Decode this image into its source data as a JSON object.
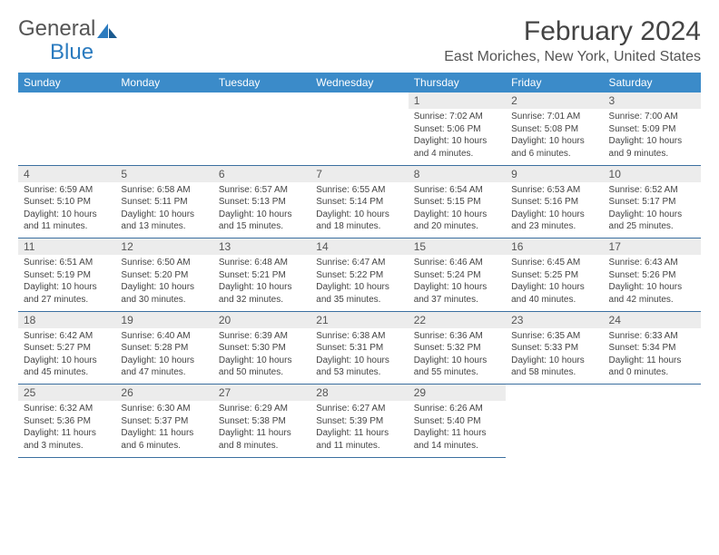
{
  "logo": {
    "text1": "General",
    "text2": "Blue"
  },
  "title": "February 2024",
  "location": "East Moriches, New York, United States",
  "colors": {
    "header_bg": "#3b8bc9",
    "header_fg": "#ffffff",
    "daynum_bg": "#ececec",
    "row_border": "#3b6fa0",
    "logo_gray": "#555555",
    "logo_blue": "#2b7bbf",
    "text": "#444444"
  },
  "weekdays": [
    "Sunday",
    "Monday",
    "Tuesday",
    "Wednesday",
    "Thursday",
    "Friday",
    "Saturday"
  ],
  "layout": {
    "columns": 7,
    "first_weekday_index": 4,
    "days_in_month": 29
  },
  "days": [
    {
      "n": 1,
      "sr": "7:02 AM",
      "ss": "5:06 PM",
      "dl": "10 hours and 4 minutes."
    },
    {
      "n": 2,
      "sr": "7:01 AM",
      "ss": "5:08 PM",
      "dl": "10 hours and 6 minutes."
    },
    {
      "n": 3,
      "sr": "7:00 AM",
      "ss": "5:09 PM",
      "dl": "10 hours and 9 minutes."
    },
    {
      "n": 4,
      "sr": "6:59 AM",
      "ss": "5:10 PM",
      "dl": "10 hours and 11 minutes."
    },
    {
      "n": 5,
      "sr": "6:58 AM",
      "ss": "5:11 PM",
      "dl": "10 hours and 13 minutes."
    },
    {
      "n": 6,
      "sr": "6:57 AM",
      "ss": "5:13 PM",
      "dl": "10 hours and 15 minutes."
    },
    {
      "n": 7,
      "sr": "6:55 AM",
      "ss": "5:14 PM",
      "dl": "10 hours and 18 minutes."
    },
    {
      "n": 8,
      "sr": "6:54 AM",
      "ss": "5:15 PM",
      "dl": "10 hours and 20 minutes."
    },
    {
      "n": 9,
      "sr": "6:53 AM",
      "ss": "5:16 PM",
      "dl": "10 hours and 23 minutes."
    },
    {
      "n": 10,
      "sr": "6:52 AM",
      "ss": "5:17 PM",
      "dl": "10 hours and 25 minutes."
    },
    {
      "n": 11,
      "sr": "6:51 AM",
      "ss": "5:19 PM",
      "dl": "10 hours and 27 minutes."
    },
    {
      "n": 12,
      "sr": "6:50 AM",
      "ss": "5:20 PM",
      "dl": "10 hours and 30 minutes."
    },
    {
      "n": 13,
      "sr": "6:48 AM",
      "ss": "5:21 PM",
      "dl": "10 hours and 32 minutes."
    },
    {
      "n": 14,
      "sr": "6:47 AM",
      "ss": "5:22 PM",
      "dl": "10 hours and 35 minutes."
    },
    {
      "n": 15,
      "sr": "6:46 AM",
      "ss": "5:24 PM",
      "dl": "10 hours and 37 minutes."
    },
    {
      "n": 16,
      "sr": "6:45 AM",
      "ss": "5:25 PM",
      "dl": "10 hours and 40 minutes."
    },
    {
      "n": 17,
      "sr": "6:43 AM",
      "ss": "5:26 PM",
      "dl": "10 hours and 42 minutes."
    },
    {
      "n": 18,
      "sr": "6:42 AM",
      "ss": "5:27 PM",
      "dl": "10 hours and 45 minutes."
    },
    {
      "n": 19,
      "sr": "6:40 AM",
      "ss": "5:28 PM",
      "dl": "10 hours and 47 minutes."
    },
    {
      "n": 20,
      "sr": "6:39 AM",
      "ss": "5:30 PM",
      "dl": "10 hours and 50 minutes."
    },
    {
      "n": 21,
      "sr": "6:38 AM",
      "ss": "5:31 PM",
      "dl": "10 hours and 53 minutes."
    },
    {
      "n": 22,
      "sr": "6:36 AM",
      "ss": "5:32 PM",
      "dl": "10 hours and 55 minutes."
    },
    {
      "n": 23,
      "sr": "6:35 AM",
      "ss": "5:33 PM",
      "dl": "10 hours and 58 minutes."
    },
    {
      "n": 24,
      "sr": "6:33 AM",
      "ss": "5:34 PM",
      "dl": "11 hours and 0 minutes."
    },
    {
      "n": 25,
      "sr": "6:32 AM",
      "ss": "5:36 PM",
      "dl": "11 hours and 3 minutes."
    },
    {
      "n": 26,
      "sr": "6:30 AM",
      "ss": "5:37 PM",
      "dl": "11 hours and 6 minutes."
    },
    {
      "n": 27,
      "sr": "6:29 AM",
      "ss": "5:38 PM",
      "dl": "11 hours and 8 minutes."
    },
    {
      "n": 28,
      "sr": "6:27 AM",
      "ss": "5:39 PM",
      "dl": "11 hours and 11 minutes."
    },
    {
      "n": 29,
      "sr": "6:26 AM",
      "ss": "5:40 PM",
      "dl": "11 hours and 14 minutes."
    }
  ],
  "labels": {
    "sunrise": "Sunrise:",
    "sunset": "Sunset:",
    "daylight": "Daylight:"
  }
}
